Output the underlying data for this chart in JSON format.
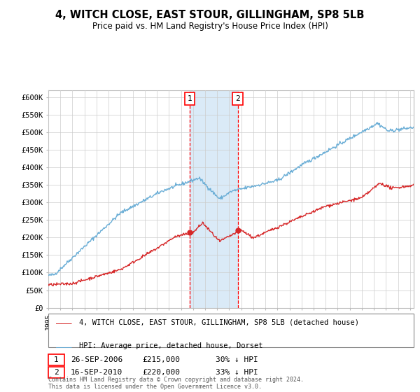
{
  "title": "4, WITCH CLOSE, EAST STOUR, GILLINGHAM, SP8 5LB",
  "subtitle": "Price paid vs. HM Land Registry's House Price Index (HPI)",
  "ylim": [
    0,
    620000
  ],
  "xlim_start": 1995.0,
  "xlim_end": 2025.3,
  "sale1_x": 2006.73,
  "sale1_y": 215000,
  "sale1_label": "1",
  "sale1_date": "26-SEP-2006",
  "sale1_price": "£215,000",
  "sale1_hpi": "30% ↓ HPI",
  "sale2_x": 2010.71,
  "sale2_y": 220000,
  "sale2_label": "2",
  "sale2_date": "16-SEP-2010",
  "sale2_price": "£220,000",
  "sale2_hpi": "33% ↓ HPI",
  "hpi_color": "#6baed6",
  "price_color": "#d62728",
  "shade_color": "#daeaf7",
  "legend_label1": "4, WITCH CLOSE, EAST STOUR, GILLINGHAM, SP8 5LB (detached house)",
  "legend_label2": "HPI: Average price, detached house, Dorset",
  "footnote": "Contains HM Land Registry data © Crown copyright and database right 2024.\nThis data is licensed under the Open Government Licence v3.0.",
  "background_color": "#ffffff",
  "grid_color": "#cccccc"
}
